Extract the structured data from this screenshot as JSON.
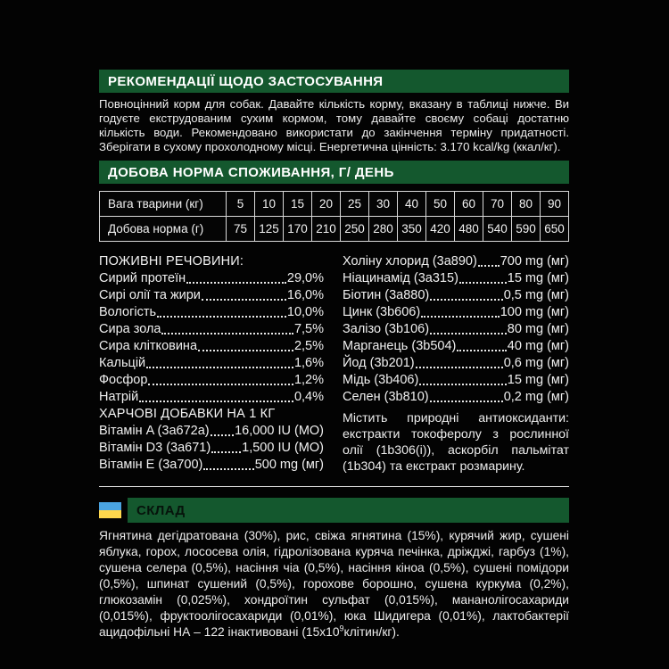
{
  "colors": {
    "header_green": "#14582e",
    "background": "#030303",
    "text": "#f0f0f0",
    "flag_blue": "#4aa3e0",
    "flag_yellow": "#ffd84d"
  },
  "recommendations": {
    "title": "РЕКОМЕНДАЦІЇ ЩОДО ЗАСТОСУВАННЯ",
    "body": "Повноцінний корм для собак. Давайте кількість корму, вказану в таблиці нижче. Ви годуєте екструдованим сухим кормом, тому давайте своєму собаці достатню кількість води. Рекомендовано використати до закінчення терміну придатності. Зберігати в сухому прохолодному місці. Енергетична цінність: 3.170 kcal/kg (ккал/кг)."
  },
  "daily_norm": {
    "title": "ДОБОВА НОРМА СПОЖИВАННЯ, Г/ ДЕНЬ",
    "table": {
      "row1_label": "Вага тварини (кг)",
      "row2_label": "Добова норма (г)",
      "weights": [
        "5",
        "10",
        "15",
        "20",
        "25",
        "30",
        "40",
        "50",
        "60",
        "70",
        "80",
        "90"
      ],
      "norms": [
        "75",
        "125",
        "170",
        "210",
        "250",
        "280",
        "350",
        "420",
        "480",
        "540",
        "590",
        "650"
      ]
    }
  },
  "nutrients": {
    "title": "ПОЖИВНІ РЕЧОВИНИ:",
    "items": [
      {
        "label": "Сирий протеїн",
        "value": "29,0%"
      },
      {
        "label": "Сирі олії та жири",
        "value": "16,0%"
      },
      {
        "label": "Вологість",
        "value": "10,0%"
      },
      {
        "label": "Сира зола",
        "value": "7,5%"
      },
      {
        "label": "Сира клітковина",
        "value": "2,5%"
      },
      {
        "label": "Кальцій",
        "value": "1,6%"
      },
      {
        "label": "Фосфор",
        "value": "1,2%"
      },
      {
        "label": "Натрій",
        "value": "0,4%"
      }
    ]
  },
  "additives": {
    "title": "ХАРЧОВІ ДОБАВКИ НА 1 КГ",
    "vitamins": [
      {
        "label": "Вітамін A (3a672a)",
        "value": "16,000 IU (МО)"
      },
      {
        "label": "Вітамін D3 (3a671)",
        "value": "1,500 IU (МО)"
      },
      {
        "label": "Вітамін E (3a700)",
        "value": "500 mg (мг)"
      }
    ],
    "minerals": [
      {
        "label": "Холіну хлорид (3a890)",
        "value": "700 mg (мг)"
      },
      {
        "label": "Ніацинамід (3a315)",
        "value": "15 mg (мг)"
      },
      {
        "label": "Біотин (3a880)",
        "value": "0,5 mg (мг)"
      },
      {
        "label": "Цинк (3b606)",
        "value": "100 mg (мг)"
      },
      {
        "label": "Залізо (3b106)",
        "value": "80 mg (мг)"
      },
      {
        "label": "Марганець (3b504)",
        "value": "40 mg (мг)"
      },
      {
        "label": "Йод (3b201)",
        "value": "0,6 mg (мг)"
      },
      {
        "label": "Мідь (3b406)",
        "value": "15 mg (мг)"
      },
      {
        "label": "Селен (3b810)",
        "value": "0,2 mg (мг)"
      }
    ],
    "antioxidants": "Містить природні антиоксиданти: екстракти токоферолу з рослинної олії (1b306(i)), аскорбіл пальмітат (1b304) та екстракт розмарину."
  },
  "composition": {
    "title": "СКЛАД",
    "flag_icon": "ukraine-flag",
    "body_prefix": "Ягнятина дегідратована (30%), рис, свіжа ягнятина (15%), курячий жир, сушені яблука, горох, лососева олія, гідролізована куряча печінка, дріжджі, гарбуз (1%), сушена селера (0,5%), насіння чіа (0,5%), насіння кіноа (0,5%), сушені помідори (0,5%), шпинат сушений (0,5%), горохове борошно, сушена куркума (0,2%), глюкозамін (0,025%), хондроїтин сульфат (0,015%), мананолігосахариди (0,015%), фруктоолігосахариди (0,01%), юка Шидигера (0,01%), лактобактерії ацидофільні НА – 122 інактивовані (15x10",
    "body_sup": "9",
    "body_suffix": "клітин/кг)."
  }
}
